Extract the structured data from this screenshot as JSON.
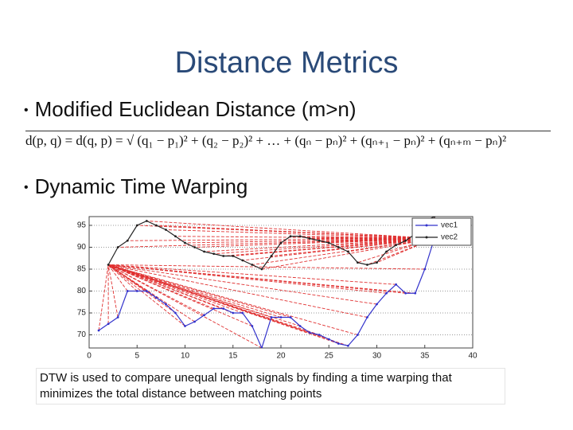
{
  "title": "Distance Metrics",
  "bullets": [
    "Modified Euclidean Distance (m>n)",
    "Dynamic Time Warping"
  ],
  "formula": "d(p, q) = d(q, p) = √ (q₁ − p₁)² + (q₂ − p₂)² + … + (qₙ − pₙ)² + (qₙ₊₁ − pₙ)² + (qₙ₊ₘ − pₙ)²",
  "chart_data": {
    "type": "line",
    "series": [
      {
        "name": "vec1",
        "color": "#3333cc",
        "x": [
          1,
          2,
          3,
          4,
          5,
          6,
          7,
          8,
          9,
          10,
          11,
          12,
          13,
          14,
          15,
          16,
          17,
          18,
          19,
          20,
          21,
          22,
          23,
          24,
          25,
          26,
          27,
          28,
          29,
          30,
          31,
          32,
          33,
          34,
          35,
          36
        ],
        "values": [
          71,
          72.5,
          74,
          80,
          80,
          80,
          78.5,
          77,
          75,
          72,
          73,
          74.5,
          76,
          76,
          75,
          75,
          72,
          67,
          74,
          74,
          74,
          72,
          70.5,
          70,
          69,
          68,
          67.5,
          70,
          74,
          77,
          79.5,
          81.5,
          79.5,
          79.5,
          85,
          92
        ]
      },
      {
        "name": "vec2",
        "color": "#222222",
        "x": [
          2,
          3,
          4,
          5,
          6,
          7,
          8,
          9,
          10,
          11,
          12,
          13,
          14,
          15,
          16,
          17,
          18,
          19,
          20,
          21,
          22,
          23,
          24,
          25,
          26,
          27,
          28,
          29,
          30,
          31,
          32,
          33,
          34,
          35,
          36
        ],
        "values": [
          86,
          90,
          91.5,
          95,
          96,
          95,
          94,
          92.5,
          91,
          90,
          89,
          88.5,
          88,
          88,
          87,
          86,
          85,
          88,
          91,
          92.5,
          92.5,
          92,
          91.5,
          91,
          90,
          89,
          86.5,
          86,
          86.5,
          89,
          90.5,
          91.5,
          93,
          96,
          97
        ]
      }
    ],
    "xlim": [
      0,
      40
    ],
    "xticks": [
      0,
      5,
      10,
      15,
      20,
      25,
      30,
      35,
      40
    ],
    "ylim": [
      67,
      97
    ],
    "yticks": [
      95,
      90,
      85,
      80,
      75,
      70
    ],
    "grid": true,
    "legend": "upper right",
    "warp_color": "#e03030"
  },
  "caption": "DTW is used to compare unequal length signals by finding a time warping that minimizes the total distance between matching points"
}
